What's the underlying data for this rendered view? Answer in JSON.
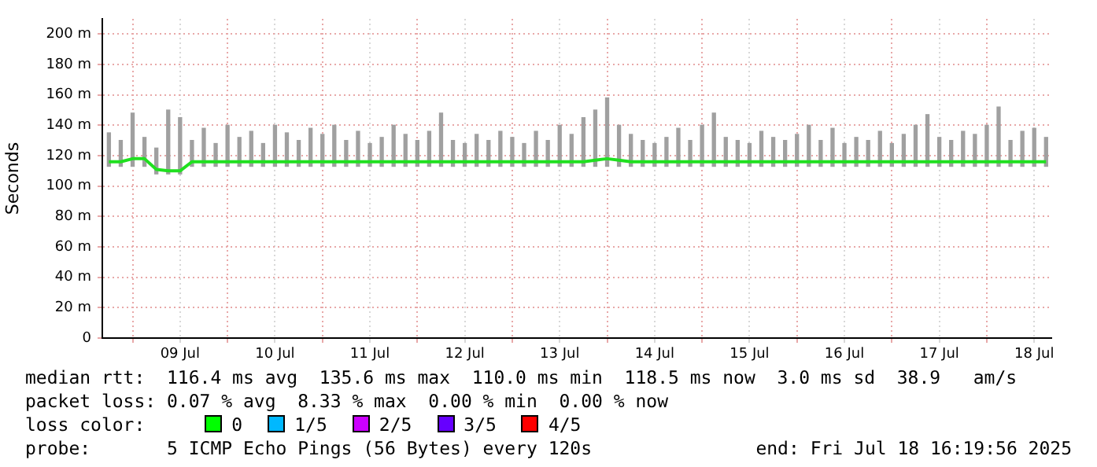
{
  "chart_data": {
    "type": "bar",
    "ylabel": "Seconds",
    "grid": true,
    "x": [
      "2025-07-08T18:00",
      "2025-07-08T21:00",
      "2025-07-09T00:00",
      "2025-07-09T03:00",
      "2025-07-09T06:00",
      "2025-07-09T09:00",
      "2025-07-09T12:00",
      "2025-07-09T15:00",
      "2025-07-09T18:00",
      "2025-07-09T21:00",
      "2025-07-10T00:00",
      "2025-07-10T03:00",
      "2025-07-10T06:00",
      "2025-07-10T09:00",
      "2025-07-10T12:00",
      "2025-07-10T15:00",
      "2025-07-10T18:00",
      "2025-07-10T21:00",
      "2025-07-11T00:00",
      "2025-07-11T03:00",
      "2025-07-11T06:00",
      "2025-07-11T09:00",
      "2025-07-11T12:00",
      "2025-07-11T15:00",
      "2025-07-11T18:00",
      "2025-07-11T21:00",
      "2025-07-12T00:00",
      "2025-07-12T03:00",
      "2025-07-12T06:00",
      "2025-07-12T09:00",
      "2025-07-12T12:00",
      "2025-07-12T15:00",
      "2025-07-12T18:00",
      "2025-07-12T21:00",
      "2025-07-13T00:00",
      "2025-07-13T03:00",
      "2025-07-13T06:00",
      "2025-07-13T09:00",
      "2025-07-13T12:00",
      "2025-07-13T15:00",
      "2025-07-13T18:00",
      "2025-07-13T21:00",
      "2025-07-14T00:00",
      "2025-07-14T03:00",
      "2025-07-14T06:00",
      "2025-07-14T09:00",
      "2025-07-14T12:00",
      "2025-07-14T15:00",
      "2025-07-14T18:00",
      "2025-07-14T21:00",
      "2025-07-15T00:00",
      "2025-07-15T03:00",
      "2025-07-15T06:00",
      "2025-07-15T09:00",
      "2025-07-15T12:00",
      "2025-07-15T15:00",
      "2025-07-15T18:00",
      "2025-07-15T21:00",
      "2025-07-16T00:00",
      "2025-07-16T03:00",
      "2025-07-16T06:00",
      "2025-07-16T09:00",
      "2025-07-16T12:00",
      "2025-07-16T15:00",
      "2025-07-16T18:00",
      "2025-07-16T21:00",
      "2025-07-17T00:00",
      "2025-07-17T03:00",
      "2025-07-17T06:00",
      "2025-07-17T09:00",
      "2025-07-17T12:00",
      "2025-07-17T15:00",
      "2025-07-17T18:00",
      "2025-07-17T21:00",
      "2025-07-18T00:00",
      "2025-07-18T03:00",
      "2025-07-18T06:00",
      "2025-07-18T09:00",
      "2025-07-18T12:00",
      "2025-07-18T15:00"
    ],
    "series": [
      {
        "color": "#a0a0a0",
        "base": [
          113,
          113,
          113,
          113,
          108,
          108,
          108,
          113,
          113,
          113,
          113,
          113,
          113,
          113,
          113,
          113,
          113,
          113,
          113,
          113,
          113,
          113,
          113,
          113,
          113,
          113,
          113,
          113,
          113,
          113,
          113,
          113,
          113,
          113,
          113,
          113,
          113,
          113,
          113,
          113,
          113,
          113,
          113,
          113,
          113,
          113,
          113,
          113,
          113,
          113,
          113,
          113,
          113,
          113,
          113,
          113,
          113,
          113,
          113,
          113,
          113,
          113,
          113,
          113,
          113,
          113,
          113,
          113,
          113,
          113,
          113,
          113,
          113,
          113,
          113,
          113,
          113,
          113,
          113,
          113
        ],
        "values": [
          22,
          17,
          35,
          19,
          17,
          42,
          37,
          17,
          25,
          15,
          27,
          19,
          23,
          15,
          27,
          22,
          17,
          25,
          21,
          27,
          17,
          23,
          15,
          19,
          27,
          21,
          17,
          23,
          35,
          17,
          15,
          21,
          17,
          23,
          19,
          15,
          23,
          17,
          27,
          21,
          32,
          37,
          45,
          27,
          21,
          17,
          15,
          19,
          25,
          17,
          27,
          35,
          19,
          17,
          15,
          23,
          19,
          17,
          21,
          27,
          17,
          25,
          15,
          19,
          17,
          23,
          15,
          21,
          27,
          34,
          19,
          17,
          23,
          21,
          27,
          39,
          17,
          23,
          25,
          19
        ]
      },
      {
        "type": "line",
        "color": "#20e020",
        "values": [
          116,
          116,
          118,
          118,
          111,
          110,
          110,
          116,
          116,
          116,
          116,
          116,
          116,
          116,
          116,
          116,
          116,
          116,
          116,
          116,
          116,
          116,
          116,
          116,
          116,
          116,
          116,
          116,
          116,
          116,
          116,
          116,
          116,
          116,
          116,
          116,
          116,
          116,
          116,
          116,
          116,
          117,
          118,
          117,
          116,
          116,
          116,
          116,
          116,
          116,
          116,
          116,
          116,
          116,
          116,
          116,
          116,
          116,
          116,
          116,
          116,
          116,
          116,
          116,
          116,
          116,
          116,
          116,
          116,
          116,
          116,
          116,
          116,
          116,
          116,
          116,
          116,
          116,
          116,
          116
        ]
      }
    ],
    "xlim": [
      "2025-07-08T16:20",
      "2025-07-18T16:20"
    ],
    "xticks": [
      {
        "value": "2025-07-09",
        "label": null
      },
      {
        "value": "2025-07-09T12:00",
        "label": "09 Jul"
      },
      {
        "value": "2025-07-10",
        "label": null
      },
      {
        "value": "2025-07-10T12:00",
        "label": "10 Jul"
      },
      {
        "value": "2025-07-11",
        "label": null
      },
      {
        "value": "2025-07-11T12:00",
        "label": "11 Jul"
      },
      {
        "value": "2025-07-12",
        "label": null
      },
      {
        "value": "2025-07-12T12:00",
        "label": "12 Jul"
      },
      {
        "value": "2025-07-13",
        "label": null
      },
      {
        "value": "2025-07-13T12:00",
        "label": "13 Jul"
      },
      {
        "value": "2025-07-14",
        "label": null
      },
      {
        "value": "2025-07-14T12:00",
        "label": "14 Jul"
      },
      {
        "value": "2025-07-15",
        "label": null
      },
      {
        "value": "2025-07-15T12:00",
        "label": "15 Jul"
      },
      {
        "value": "2025-07-16",
        "label": null
      },
      {
        "value": "2025-07-16T12:00",
        "label": "16 Jul"
      },
      {
        "value": "2025-07-17",
        "label": null
      },
      {
        "value": "2025-07-17T12:00",
        "label": "17 Jul"
      },
      {
        "value": "2025-07-18",
        "label": null
      },
      {
        "value": "2025-07-18T12:00",
        "label": "18 Jul"
      }
    ],
    "ylim": [
      0,
      210
    ],
    "yticks": [
      0,
      {
        "value": 20,
        "label": "20 m"
      },
      {
        "value": 40,
        "label": "40 m"
      },
      {
        "value": 60,
        "label": "60 m"
      },
      {
        "value": 80,
        "label": "80 m"
      },
      {
        "value": 100,
        "label": "100 m"
      },
      {
        "value": 120,
        "label": "120 m"
      },
      {
        "value": 140,
        "label": "140 m"
      },
      {
        "value": 160,
        "label": "160 m"
      },
      {
        "value": 180,
        "label": "180 m"
      },
      {
        "value": 200,
        "label": "200 m"
      }
    ],
    "annotations": [
      "median rtt:  116.4 ms avg  135.6 ms max  110.0 ms min  118.5 ms now  3.0 ms sd  38.9   am/s",
      "packet loss: 0.07 % avg  8.33 % max  0.00 % min  0.00 % now",
      "loss color:",
      "0",
      "1/5",
      "2/5",
      "3/5",
      "4/5",
      "probe:       5 ICMP Echo Pings (56 Bytes) every 120s",
      "end: Fri Jul 18 16:19:56 2025"
    ]
  }
}
